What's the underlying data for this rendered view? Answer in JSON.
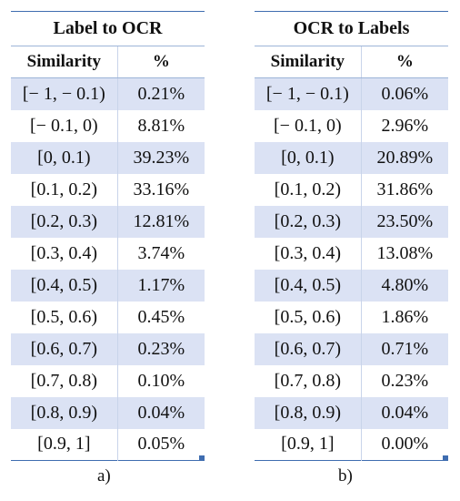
{
  "tables": [
    {
      "title": "Label to OCR",
      "headers": [
        "Similarity",
        "%"
      ],
      "rows": [
        [
          "[− 1, − 0.1)",
          "0.21%"
        ],
        [
          "[− 0.1, 0)",
          "8.81%"
        ],
        [
          "[0, 0.1)",
          "39.23%"
        ],
        [
          "[0.1, 0.2)",
          "33.16%"
        ],
        [
          "[0.2, 0.3)",
          "12.81%"
        ],
        [
          "[0.3, 0.4)",
          "3.74%"
        ],
        [
          "[0.4, 0.5)",
          "1.17%"
        ],
        [
          "[0.5, 0.6)",
          "0.45%"
        ],
        [
          "[0.6, 0.7)",
          "0.23%"
        ],
        [
          "[0.7, 0.8)",
          "0.10%"
        ],
        [
          "[0.8, 0.9)",
          "0.04%"
        ],
        [
          "[0.9, 1]",
          "0.05%"
        ]
      ],
      "caption": "a)"
    },
    {
      "title": "OCR to Labels",
      "headers": [
        "Similarity",
        "%"
      ],
      "rows": [
        [
          "[− 1, − 0.1)",
          "0.06%"
        ],
        [
          "[− 0.1, 0)",
          "2.96%"
        ],
        [
          "[0, 0.1)",
          "20.89%"
        ],
        [
          "[0.1, 0.2)",
          "31.86%"
        ],
        [
          "[0.2, 0.3)",
          "23.50%"
        ],
        [
          "[0.3, 0.4)",
          "13.08%"
        ],
        [
          "[0.4, 0.5)",
          "4.80%"
        ],
        [
          "[0.5, 0.6)",
          "1.86%"
        ],
        [
          "[0.6, 0.7)",
          "0.71%"
        ],
        [
          "[0.7, 0.8)",
          "0.23%"
        ],
        [
          "[0.8, 0.9)",
          "0.04%"
        ],
        [
          "[0.9, 1]",
          "0.00%"
        ]
      ],
      "caption": "b)"
    }
  ],
  "colors": {
    "band": "#dbe2f4",
    "rule": "#3f6db0"
  }
}
